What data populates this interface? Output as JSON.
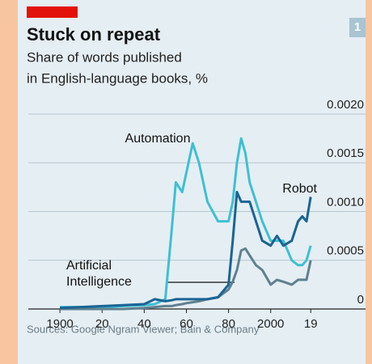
{
  "chart_data": {
    "type": "line",
    "title": "Stuck on repeat",
    "subtitle": [
      "Share of words published",
      "in English-language books, %"
    ],
    "badge": "1",
    "source": "Sources: Google Ngram Viewer; Bain & Company",
    "x": [
      1900,
      1910,
      1920,
      1930,
      1940,
      1945,
      1950,
      1953,
      1955,
      1958,
      1960,
      1963,
      1966,
      1970,
      1975,
      1980,
      1982,
      1984,
      1986,
      1988,
      1990,
      1993,
      1996,
      2000,
      2003,
      2006,
      2010,
      2013,
      2015,
      2017,
      2019
    ],
    "series": [
      {
        "name": "Automation",
        "color": "#3fbfd4",
        "values": [
          2e-05,
          2e-05,
          2e-05,
          3e-05,
          4e-05,
          5e-05,
          0.0001,
          0.0008,
          0.0013,
          0.0012,
          0.0014,
          0.0017,
          0.0015,
          0.0011,
          0.0009,
          0.0009,
          0.0011,
          0.0015,
          0.00175,
          0.0016,
          0.0013,
          0.0011,
          0.0009,
          0.0007,
          0.0007,
          0.0007,
          0.0005,
          0.00045,
          0.00045,
          0.0005,
          0.00065
        ]
      },
      {
        "name": "Artificial Intelligence",
        "label_lines": [
          "Artificial",
          "Intelligence"
        ],
        "color": "#5f808f",
        "values": [
          0,
          0,
          0,
          0,
          1e-05,
          2e-05,
          3e-05,
          3e-05,
          4e-05,
          5e-05,
          6e-05,
          7e-05,
          8e-05,
          0.0001,
          0.00012,
          0.0002,
          0.00028,
          0.0004,
          0.0006,
          0.00062,
          0.00055,
          0.00045,
          0.0004,
          0.00025,
          0.0003,
          0.00028,
          0.00025,
          0.0003,
          0.0003,
          0.0003,
          0.0005
        ]
      },
      {
        "name": "Robot",
        "color": "#1a6494",
        "values": [
          1e-05,
          2e-05,
          3e-05,
          4e-05,
          5e-05,
          0.0001,
          8e-05,
          9e-05,
          0.0001,
          0.0001,
          0.0001,
          0.0001,
          0.0001,
          0.0001,
          0.00012,
          0.00025,
          0.0007,
          0.0012,
          0.0011,
          0.0011,
          0.0011,
          0.0009,
          0.0007,
          0.00065,
          0.00075,
          0.00065,
          0.0007,
          0.0009,
          0.00095,
          0.0009,
          0.00115
        ]
      }
    ],
    "xlim": [
      1885,
      2045
    ],
    "xticks": [
      1900,
      {
        "value": 1920,
        "label": "20"
      },
      {
        "value": 1940,
        "label": "40"
      },
      {
        "value": 1960,
        "label": "60"
      },
      {
        "value": 1980,
        "label": "80"
      },
      2000,
      {
        "value": 2019,
        "label": "19"
      }
    ],
    "ylim": [
      0,
      0.002
    ],
    "yticks": [
      0,
      0.0005,
      {
        "value": 0.001,
        "label": "0.0010"
      },
      0.0015,
      {
        "value": 0.002,
        "label": "0.0020"
      }
    ],
    "grid": true
  }
}
